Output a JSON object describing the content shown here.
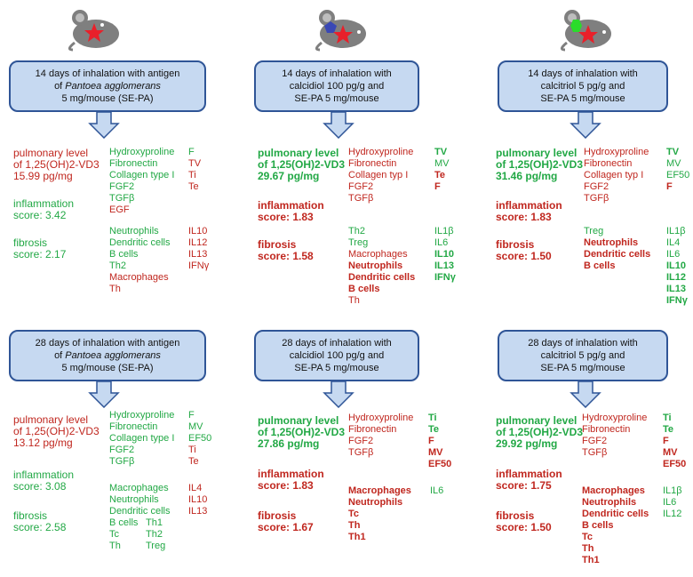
{
  "colors": {
    "red": "#c0271f",
    "green": "#22a845",
    "box_fill": "#c6d9f1",
    "box_border": "#2f5597",
    "mouse": "#7f7f7f",
    "star": "#e8202a",
    "pentagon": "#3a48b5",
    "hexagon": "#2bdc2b"
  },
  "panels": {
    "p1": {
      "box": {
        "l1": "14 days of inhalation with antigen",
        "l2a": "of ",
        "l2b": "Pantoea agglomerans",
        "l3": "5 mg/mouse (SE-PA)"
      },
      "pulm": [
        "pulmonary level",
        "of 1,25(OH)2-VD3",
        "15.99 pg/mg"
      ],
      "infl": [
        "inflammation",
        "score:  3.42"
      ],
      "fib": [
        "fibrosis",
        "score: 2.17"
      ],
      "genes": [
        {
          "t": "Hydroxyproline",
          "c": "green"
        },
        {
          "t": "Fibronectin",
          "c": "green"
        },
        {
          "t": "Collagen type I",
          "c": "green"
        },
        {
          "t": "FGF2",
          "c": "green"
        },
        {
          "t": "TGFβ",
          "c": "green"
        },
        {
          "t": "EGF",
          "c": "red"
        }
      ],
      "genes_r": [
        {
          "t": "F",
          "c": "green"
        },
        {
          "t": "TV",
          "c": "red"
        },
        {
          "t": "Ti",
          "c": "red"
        },
        {
          "t": "Te",
          "c": "red"
        }
      ],
      "cells": [
        {
          "t": "Neutrophils",
          "c": "green"
        },
        {
          "t": "Dendritic cells",
          "c": "green"
        },
        {
          "t": "B cells",
          "c": "green"
        },
        {
          "t": "Th2",
          "c": "green"
        },
        {
          "t": "Macrophages",
          "c": "red"
        },
        {
          "t": "Th",
          "c": "red"
        }
      ],
      "cells_r": [
        {
          "t": "IL10",
          "c": "red"
        },
        {
          "t": "IL12",
          "c": "red"
        },
        {
          "t": "IL13",
          "c": "red"
        },
        {
          "t": "IFNγ",
          "c": "red"
        }
      ]
    },
    "p2": {
      "box": {
        "l1": "14 days of inhalation with",
        "l2": "calcidiol 100 pg/g and",
        "l3": "SE-PA 5 mg/mouse"
      },
      "pulm": [
        "pulmonary level",
        "of 1,25(OH)2-VD3",
        "29.67 pg/mg"
      ],
      "infl": [
        "inflammation",
        "score:  1.83"
      ],
      "fib": [
        "fibrosis",
        "score: 1.58"
      ],
      "genes": [
        {
          "t": "Hydroxyproline",
          "c": "red"
        },
        {
          "t": "Fibronectin",
          "c": "red"
        },
        {
          "t": "Collagen typ I",
          "c": "red"
        },
        {
          "t": "FGF2",
          "c": "red"
        },
        {
          "t": "TGFβ",
          "c": "red"
        }
      ],
      "genes_r": [
        {
          "t": "TV",
          "c": "green",
          "b": true
        },
        {
          "t": "MV",
          "c": "green"
        },
        {
          "t": "Te",
          "c": "red",
          "b": true
        },
        {
          "t": "F",
          "c": "red",
          "b": true
        }
      ],
      "cells": [
        {
          "t": "Th2",
          "c": "green"
        },
        {
          "t": "Treg",
          "c": "green"
        },
        {
          "t": "Macrophages",
          "c": "red"
        },
        {
          "t": "Neutrophils",
          "c": "red",
          "b": true
        },
        {
          "t": "Dendritic cells",
          "c": "red",
          "b": true
        },
        {
          "t": "B cells",
          "c": "red",
          "b": true
        },
        {
          "t": "Th",
          "c": "red"
        }
      ],
      "cells_r": [
        {
          "t": "IL1β",
          "c": "green"
        },
        {
          "t": "IL6",
          "c": "green"
        },
        {
          "t": "IL10",
          "c": "green",
          "b": true
        },
        {
          "t": "IL13",
          "c": "green",
          "b": true
        },
        {
          "t": "IFNγ",
          "c": "green",
          "b": true
        }
      ]
    },
    "p3": {
      "box": {
        "l1": "14 days of inhalation with",
        "l2": "calcitriol 5 pg/g and",
        "l3": "SE-PA 5 mg/mouse"
      },
      "pulm": [
        "pulmonary level",
        "of 1,25(OH)2-VD3",
        "31.46 pg/mg"
      ],
      "infl": [
        "inflammation",
        "score:  1.83"
      ],
      "fib": [
        "fibrosis",
        "score: 1.50"
      ],
      "genes": [
        {
          "t": "Hydroxyproline",
          "c": "red"
        },
        {
          "t": "Fibronectin",
          "c": "red"
        },
        {
          "t": "Collagen typ I",
          "c": "red"
        },
        {
          "t": "FGF2",
          "c": "red"
        },
        {
          "t": "TGFβ",
          "c": "red"
        }
      ],
      "genes_r": [
        {
          "t": "TV",
          "c": "green",
          "b": true
        },
        {
          "t": "MV",
          "c": "green"
        },
        {
          "t": "EF50",
          "c": "green"
        },
        {
          "t": "F",
          "c": "red",
          "b": true
        }
      ],
      "cells": [
        {
          "t": "Treg",
          "c": "green"
        },
        {
          "t": "Neutrophils",
          "c": "red",
          "b": true
        },
        {
          "t": "Dendritic cells",
          "c": "red",
          "b": true
        },
        {
          "t": "B cells",
          "c": "red",
          "b": true
        }
      ],
      "cells_r": [
        {
          "t": "IL1β",
          "c": "green"
        },
        {
          "t": "IL4",
          "c": "green"
        },
        {
          "t": "IL6",
          "c": "green"
        },
        {
          "t": "IL10",
          "c": "green",
          "b": true
        },
        {
          "t": "IL12",
          "c": "green",
          "b": true
        },
        {
          "t": "IL13",
          "c": "green",
          "b": true
        },
        {
          "t": "IFNγ",
          "c": "green",
          "b": true
        }
      ]
    },
    "p4": {
      "box": {
        "l1": "28 days of inhalation with antigen",
        "l2a": "of ",
        "l2b": "Pantoea agglomerans",
        "l3": "5 mg/mouse (SE-PA)"
      },
      "pulm": [
        "pulmonary level",
        "of 1,25(OH)2-VD3",
        "13.12 pg/mg"
      ],
      "infl": [
        "inflammation",
        "score:  3.08"
      ],
      "fib": [
        "fibrosis",
        "score: 2.58"
      ],
      "genes": [
        {
          "t": "Hydroxyproline",
          "c": "green"
        },
        {
          "t": "Fibronectin",
          "c": "green"
        },
        {
          "t": "Collagen type I",
          "c": "green"
        },
        {
          "t": "FGF2",
          "c": "green"
        },
        {
          "t": "TGFβ",
          "c": "green"
        }
      ],
      "genes_r": [
        {
          "t": "F",
          "c": "green"
        },
        {
          "t": "MV",
          "c": "green"
        },
        {
          "t": "EF50",
          "c": "green"
        },
        {
          "t": "Ti",
          "c": "red"
        },
        {
          "t": "Te",
          "c": "red"
        }
      ],
      "cells": [
        {
          "t": "Macrophages",
          "c": "green"
        },
        {
          "t": "Neutrophils",
          "c": "green"
        },
        {
          "t": "Dendritic cells",
          "c": "green"
        },
        {
          "t": "B cells",
          "c": "green"
        },
        {
          "t": "Tc",
          "c": "green"
        },
        {
          "t": "Th",
          "c": "green"
        }
      ],
      "cells_m": [
        {
          "t": "Th1",
          "c": "green"
        },
        {
          "t": "Th2",
          "c": "green"
        },
        {
          "t": "Treg",
          "c": "green"
        }
      ],
      "cells_r": [
        {
          "t": "IL4",
          "c": "red"
        },
        {
          "t": "IL10",
          "c": "red"
        },
        {
          "t": "IL13",
          "c": "red"
        }
      ]
    },
    "p5": {
      "box": {
        "l1": "28 days of inhalation with",
        "l2": "calcidiol 100 pg/g and",
        "l3": "SE-PA 5 mg/mouse"
      },
      "pulm": [
        "pulmonary level",
        "of 1,25(OH)2-VD3",
        "27.86 pg/mg"
      ],
      "infl": [
        "inflammation",
        "score:  1.83"
      ],
      "fib": [
        "fibrosis",
        "score: 1.67"
      ],
      "genes": [
        {
          "t": "Hydroxyproline",
          "c": "red"
        },
        {
          "t": "Fibronectin",
          "c": "red"
        },
        {
          "t": "FGF2",
          "c": "red"
        },
        {
          "t": "TGFβ",
          "c": "red"
        }
      ],
      "genes_r": [
        {
          "t": "Ti",
          "c": "green",
          "b": true
        },
        {
          "t": "Te",
          "c": "green",
          "b": true
        },
        {
          "t": "F",
          "c": "red",
          "b": true
        },
        {
          "t": "MV",
          "c": "red",
          "b": true
        },
        {
          "t": "EF50",
          "c": "red",
          "b": true
        }
      ],
      "cells": [
        {
          "t": "Macrophages",
          "c": "red",
          "b": true
        },
        {
          "t": "Neutrophils",
          "c": "red",
          "b": true
        },
        {
          "t": "Tc",
          "c": "red",
          "b": true
        },
        {
          "t": "Th",
          "c": "red",
          "b": true
        },
        {
          "t": "Th1",
          "c": "red",
          "b": true
        }
      ],
      "cells_r": [
        {
          "t": "IL6",
          "c": "green"
        }
      ]
    },
    "p6": {
      "box": {
        "l1": "28 days of inhalation with",
        "l2": "calcitriol 5 pg/g and",
        "l3": "SE-PA 5 mg/mouse"
      },
      "pulm": [
        "pulmonary level",
        "of 1,25(OH)2-VD3",
        "29.92 pg/mg"
      ],
      "infl": [
        "inflammation",
        "score:  1.75"
      ],
      "fib": [
        "fibrosis",
        "score: 1.50"
      ],
      "genes": [
        {
          "t": "Hydroxyproline",
          "c": "red"
        },
        {
          "t": "Fibronectin",
          "c": "red"
        },
        {
          "t": "FGF2",
          "c": "red"
        },
        {
          "t": "TGFβ",
          "c": "red"
        }
      ],
      "genes_r": [
        {
          "t": "Ti",
          "c": "green",
          "b": true
        },
        {
          "t": "Te",
          "c": "green",
          "b": true
        },
        {
          "t": "F",
          "c": "red",
          "b": true
        },
        {
          "t": "MV",
          "c": "red",
          "b": true
        },
        {
          "t": "EF50",
          "c": "red",
          "b": true
        }
      ],
      "cells": [
        {
          "t": "Macrophages",
          "c": "red",
          "b": true
        },
        {
          "t": "Neutrophils",
          "c": "red",
          "b": true
        },
        {
          "t": "Dendritic cells",
          "c": "red",
          "b": true
        },
        {
          "t": "B cells",
          "c": "red",
          "b": true
        },
        {
          "t": "Tc",
          "c": "red",
          "b": true
        },
        {
          "t": "Th",
          "c": "red",
          "b": true
        },
        {
          "t": "Th1",
          "c": "red",
          "b": true
        }
      ],
      "cells_r": [
        {
          "t": "IL1β",
          "c": "green"
        },
        {
          "t": "IL6",
          "c": "green"
        },
        {
          "t": "IL12",
          "c": "green"
        }
      ]
    }
  }
}
